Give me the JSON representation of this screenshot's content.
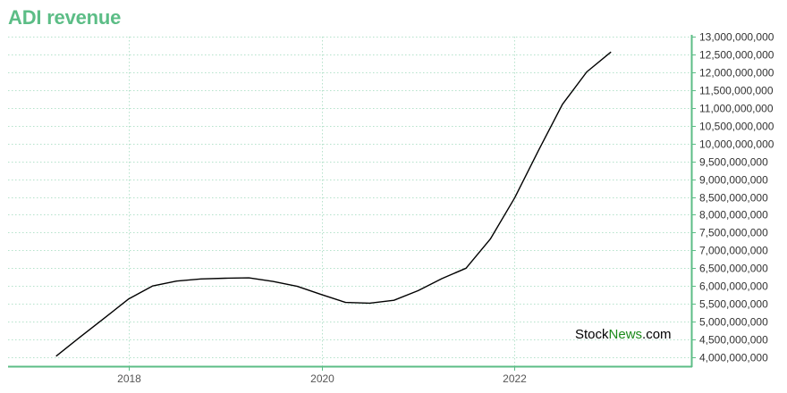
{
  "title": "ADI revenue",
  "colors": {
    "title": "#5cbd86",
    "axis": "#5cbd86",
    "grid": "#b4e2cb",
    "line": "#000000",
    "watermark_a": "#000000",
    "watermark_b": "#1a8a1a"
  },
  "watermark": {
    "part1": "Stock",
    "part2": "News",
    "part3": ".com"
  },
  "chart_data": {
    "type": "line",
    "title": "ADI revenue",
    "xlabel": "",
    "ylabel": "",
    "x_axis_type": "date",
    "y_axis_position": "right",
    "grid": true,
    "xlim": [
      "2016-10-01",
      "2023-11-01"
    ],
    "ylim": [
      3750000000,
      13000000000
    ],
    "x_ticks": [
      {
        "value": "2018-01-01",
        "label": "2018"
      },
      {
        "value": "2020-01-01",
        "label": "2020"
      },
      {
        "value": "2022-01-01",
        "label": "2022"
      }
    ],
    "y_ticks": [
      {
        "value": 4000000000,
        "label": "4,000,000,000"
      },
      {
        "value": 4500000000,
        "label": "4,500,000,000"
      },
      {
        "value": 5000000000,
        "label": "5,000,000,000"
      },
      {
        "value": 5500000000,
        "label": "5,500,000,000"
      },
      {
        "value": 6000000000,
        "label": "6,000,000,000"
      },
      {
        "value": 6500000000,
        "label": "6,500,000,000"
      },
      {
        "value": 7000000000,
        "label": "7,000,000,000"
      },
      {
        "value": 7500000000,
        "label": "7,500,000,000"
      },
      {
        "value": 8000000000,
        "label": "8,000,000,000"
      },
      {
        "value": 8500000000,
        "label": "8,500,000,000"
      },
      {
        "value": 9000000000,
        "label": "9,000,000,000"
      },
      {
        "value": 9500000000,
        "label": "9,500,000,000"
      },
      {
        "value": 10000000000,
        "label": "10,000,000,000"
      },
      {
        "value": 10500000000,
        "label": "10,500,000,000"
      },
      {
        "value": 11000000000,
        "label": "11,000,000,000"
      },
      {
        "value": 11500000000,
        "label": "11,500,000,000"
      },
      {
        "value": 12000000000,
        "label": "12,000,000,000"
      },
      {
        "value": 12500000000,
        "label": "12,500,000,000"
      },
      {
        "value": 13000000000,
        "label": "13,000,000,000"
      }
    ],
    "series": [
      {
        "points": [
          {
            "x": "2017-04-01",
            "y": 4030000000
          },
          {
            "x": "2017-07-01",
            "y": 4570000000
          },
          {
            "x": "2017-10-01",
            "y": 5100000000
          },
          {
            "x": "2018-01-01",
            "y": 5640000000
          },
          {
            "x": "2018-04-01",
            "y": 6000000000
          },
          {
            "x": "2018-07-01",
            "y": 6140000000
          },
          {
            "x": "2018-10-01",
            "y": 6200000000
          },
          {
            "x": "2019-01-01",
            "y": 6220000000
          },
          {
            "x": "2019-04-01",
            "y": 6230000000
          },
          {
            "x": "2019-07-01",
            "y": 6130000000
          },
          {
            "x": "2019-10-01",
            "y": 5990000000
          },
          {
            "x": "2020-01-01",
            "y": 5760000000
          },
          {
            "x": "2020-04-01",
            "y": 5540000000
          },
          {
            "x": "2020-07-01",
            "y": 5520000000
          },
          {
            "x": "2020-10-01",
            "y": 5600000000
          },
          {
            "x": "2021-01-01",
            "y": 5870000000
          },
          {
            "x": "2021-04-01",
            "y": 6210000000
          },
          {
            "x": "2021-07-01",
            "y": 6500000000
          },
          {
            "x": "2021-10-01",
            "y": 7320000000
          },
          {
            "x": "2022-01-01",
            "y": 8470000000
          },
          {
            "x": "2022-04-01",
            "y": 9800000000
          },
          {
            "x": "2022-07-01",
            "y": 11100000000
          },
          {
            "x": "2022-10-01",
            "y": 12010000000
          },
          {
            "x": "2023-01-01",
            "y": 12570000000
          }
        ]
      }
    ]
  }
}
